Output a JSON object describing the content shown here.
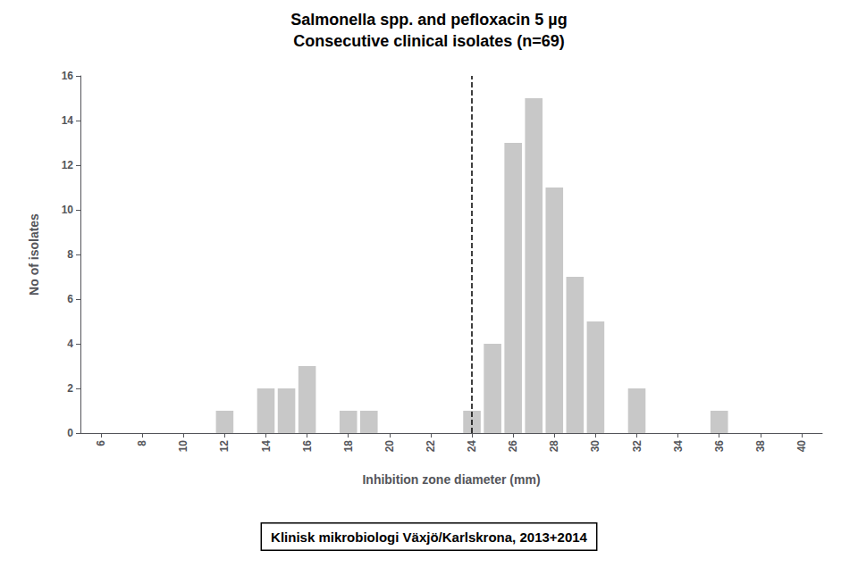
{
  "chart_data": {
    "type": "bar",
    "title": "Salmonella spp. and pefloxacin 5 µg",
    "subtitle": "Consecutive clinical isolates (n=69)",
    "xlabel": "Inhibition zone diameter (mm)",
    "ylabel": "No of isolates",
    "x": [
      12,
      14,
      15,
      16,
      18,
      19,
      24,
      25,
      26,
      27,
      28,
      29,
      30,
      32,
      36
    ],
    "values": [
      1,
      2,
      2,
      3,
      1,
      1,
      1,
      4,
      13,
      15,
      11,
      7,
      5,
      2,
      1
    ],
    "color": "#c8c8c8",
    "xlim": [
      5,
      41
    ],
    "ylim": [
      0,
      16
    ],
    "xticks": [
      6,
      8,
      10,
      12,
      14,
      16,
      18,
      20,
      22,
      24,
      26,
      28,
      30,
      32,
      34,
      36,
      38,
      40
    ],
    "yticks": [
      0,
      2,
      4,
      6,
      8,
      10,
      12,
      14,
      16
    ],
    "vline": {
      "x": 24,
      "line_style": "dashed",
      "color": "#000000"
    },
    "annotations": [
      "Klinisk mikrobiologi Växjö/Karlskrona, 2013+2014"
    ],
    "grid": false
  }
}
